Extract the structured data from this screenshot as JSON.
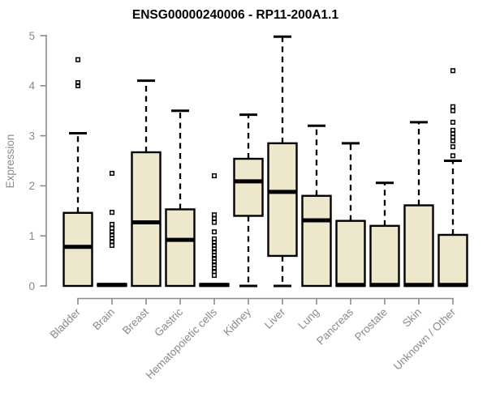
{
  "title": "ENSG00000240006 - RP11-200A1.1",
  "colors": {
    "box_fill": "#EDE7CB",
    "box_stroke": "#000000",
    "median_color": "#000000",
    "axis_color": "#8B8B8B",
    "tick_label_color": "#8a8a8a",
    "title_color": "#000000",
    "background": "#ffffff"
  },
  "chart_data": {
    "type": "boxplot",
    "title": "ENSG00000240006 - RP11-200A1.1",
    "xlabel": "",
    "ylabel": "Expression",
    "ylim": [
      0,
      5
    ],
    "yticks": [
      0,
      1,
      2,
      3,
      4,
      5
    ],
    "grid": false,
    "legend": false,
    "categories": [
      "Bladder",
      "Brain",
      "Breast",
      "Gastric",
      "Hematopoietic cells",
      "Kidney",
      "Liver",
      "Lung",
      "Pancreas",
      "Prostate",
      "Skin",
      "Unknown / Other"
    ],
    "series": [
      {
        "name": "Bladder",
        "whisker_low": 0,
        "q1": 0,
        "median": 0.78,
        "q3": 1.46,
        "whisker_high": 3.05,
        "outliers": [
          4.0,
          4.06,
          4.52
        ]
      },
      {
        "name": "Brain",
        "whisker_low": 0,
        "q1": 0,
        "median": 0.02,
        "q3": 0.04,
        "whisker_high": 0.04,
        "outliers": [
          0.81,
          0.89,
          0.95,
          1.02,
          1.08,
          1.15,
          1.23,
          1.47,
          2.25
        ]
      },
      {
        "name": "Breast",
        "whisker_low": 0,
        "q1": 0,
        "median": 1.27,
        "q3": 2.67,
        "whisker_high": 4.1,
        "outliers": []
      },
      {
        "name": "Gastric",
        "whisker_low": 0,
        "q1": 0,
        "median": 0.92,
        "q3": 1.53,
        "whisker_high": 3.5,
        "outliers": []
      },
      {
        "name": "Hematopoietic cells",
        "whisker_low": 0,
        "q1": 0,
        "median": 0.02,
        "q3": 0.04,
        "whisker_high": 0.04,
        "outliers": [
          0.21,
          0.29,
          0.35,
          0.42,
          0.48,
          0.55,
          0.61,
          0.68,
          0.74,
          0.81,
          0.87,
          0.94,
          1.08,
          1.27,
          1.35,
          1.42,
          2.2
        ]
      },
      {
        "name": "Kidney",
        "whisker_low": 0,
        "q1": 1.4,
        "median": 2.09,
        "q3": 2.54,
        "whisker_high": 3.42,
        "outliers": []
      },
      {
        "name": "Liver",
        "whisker_low": 0,
        "q1": 0.6,
        "median": 1.88,
        "q3": 2.85,
        "whisker_high": 4.98,
        "outliers": []
      },
      {
        "name": "Lung",
        "whisker_low": 0,
        "q1": 0,
        "median": 1.31,
        "q3": 1.8,
        "whisker_high": 3.2,
        "outliers": []
      },
      {
        "name": "Pancreas",
        "whisker_low": 0,
        "q1": 0,
        "median": 0.02,
        "q3": 1.3,
        "whisker_high": 2.85,
        "outliers": []
      },
      {
        "name": "Prostate",
        "whisker_low": 0,
        "q1": 0,
        "median": 0.02,
        "q3": 1.2,
        "whisker_high": 2.06,
        "outliers": []
      },
      {
        "name": "Skin",
        "whisker_low": 0,
        "q1": 0,
        "median": 0.02,
        "q3": 1.61,
        "whisker_high": 3.27,
        "outliers": []
      },
      {
        "name": "Unknown / Other",
        "whisker_low": 0,
        "q1": 0,
        "median": 0.02,
        "q3": 1.02,
        "whisker_high": 2.5,
        "outliers": [
          2.6,
          2.78,
          2.9,
          2.97,
          3.04,
          3.11,
          3.27,
          3.5,
          3.58,
          4.3
        ]
      }
    ]
  }
}
